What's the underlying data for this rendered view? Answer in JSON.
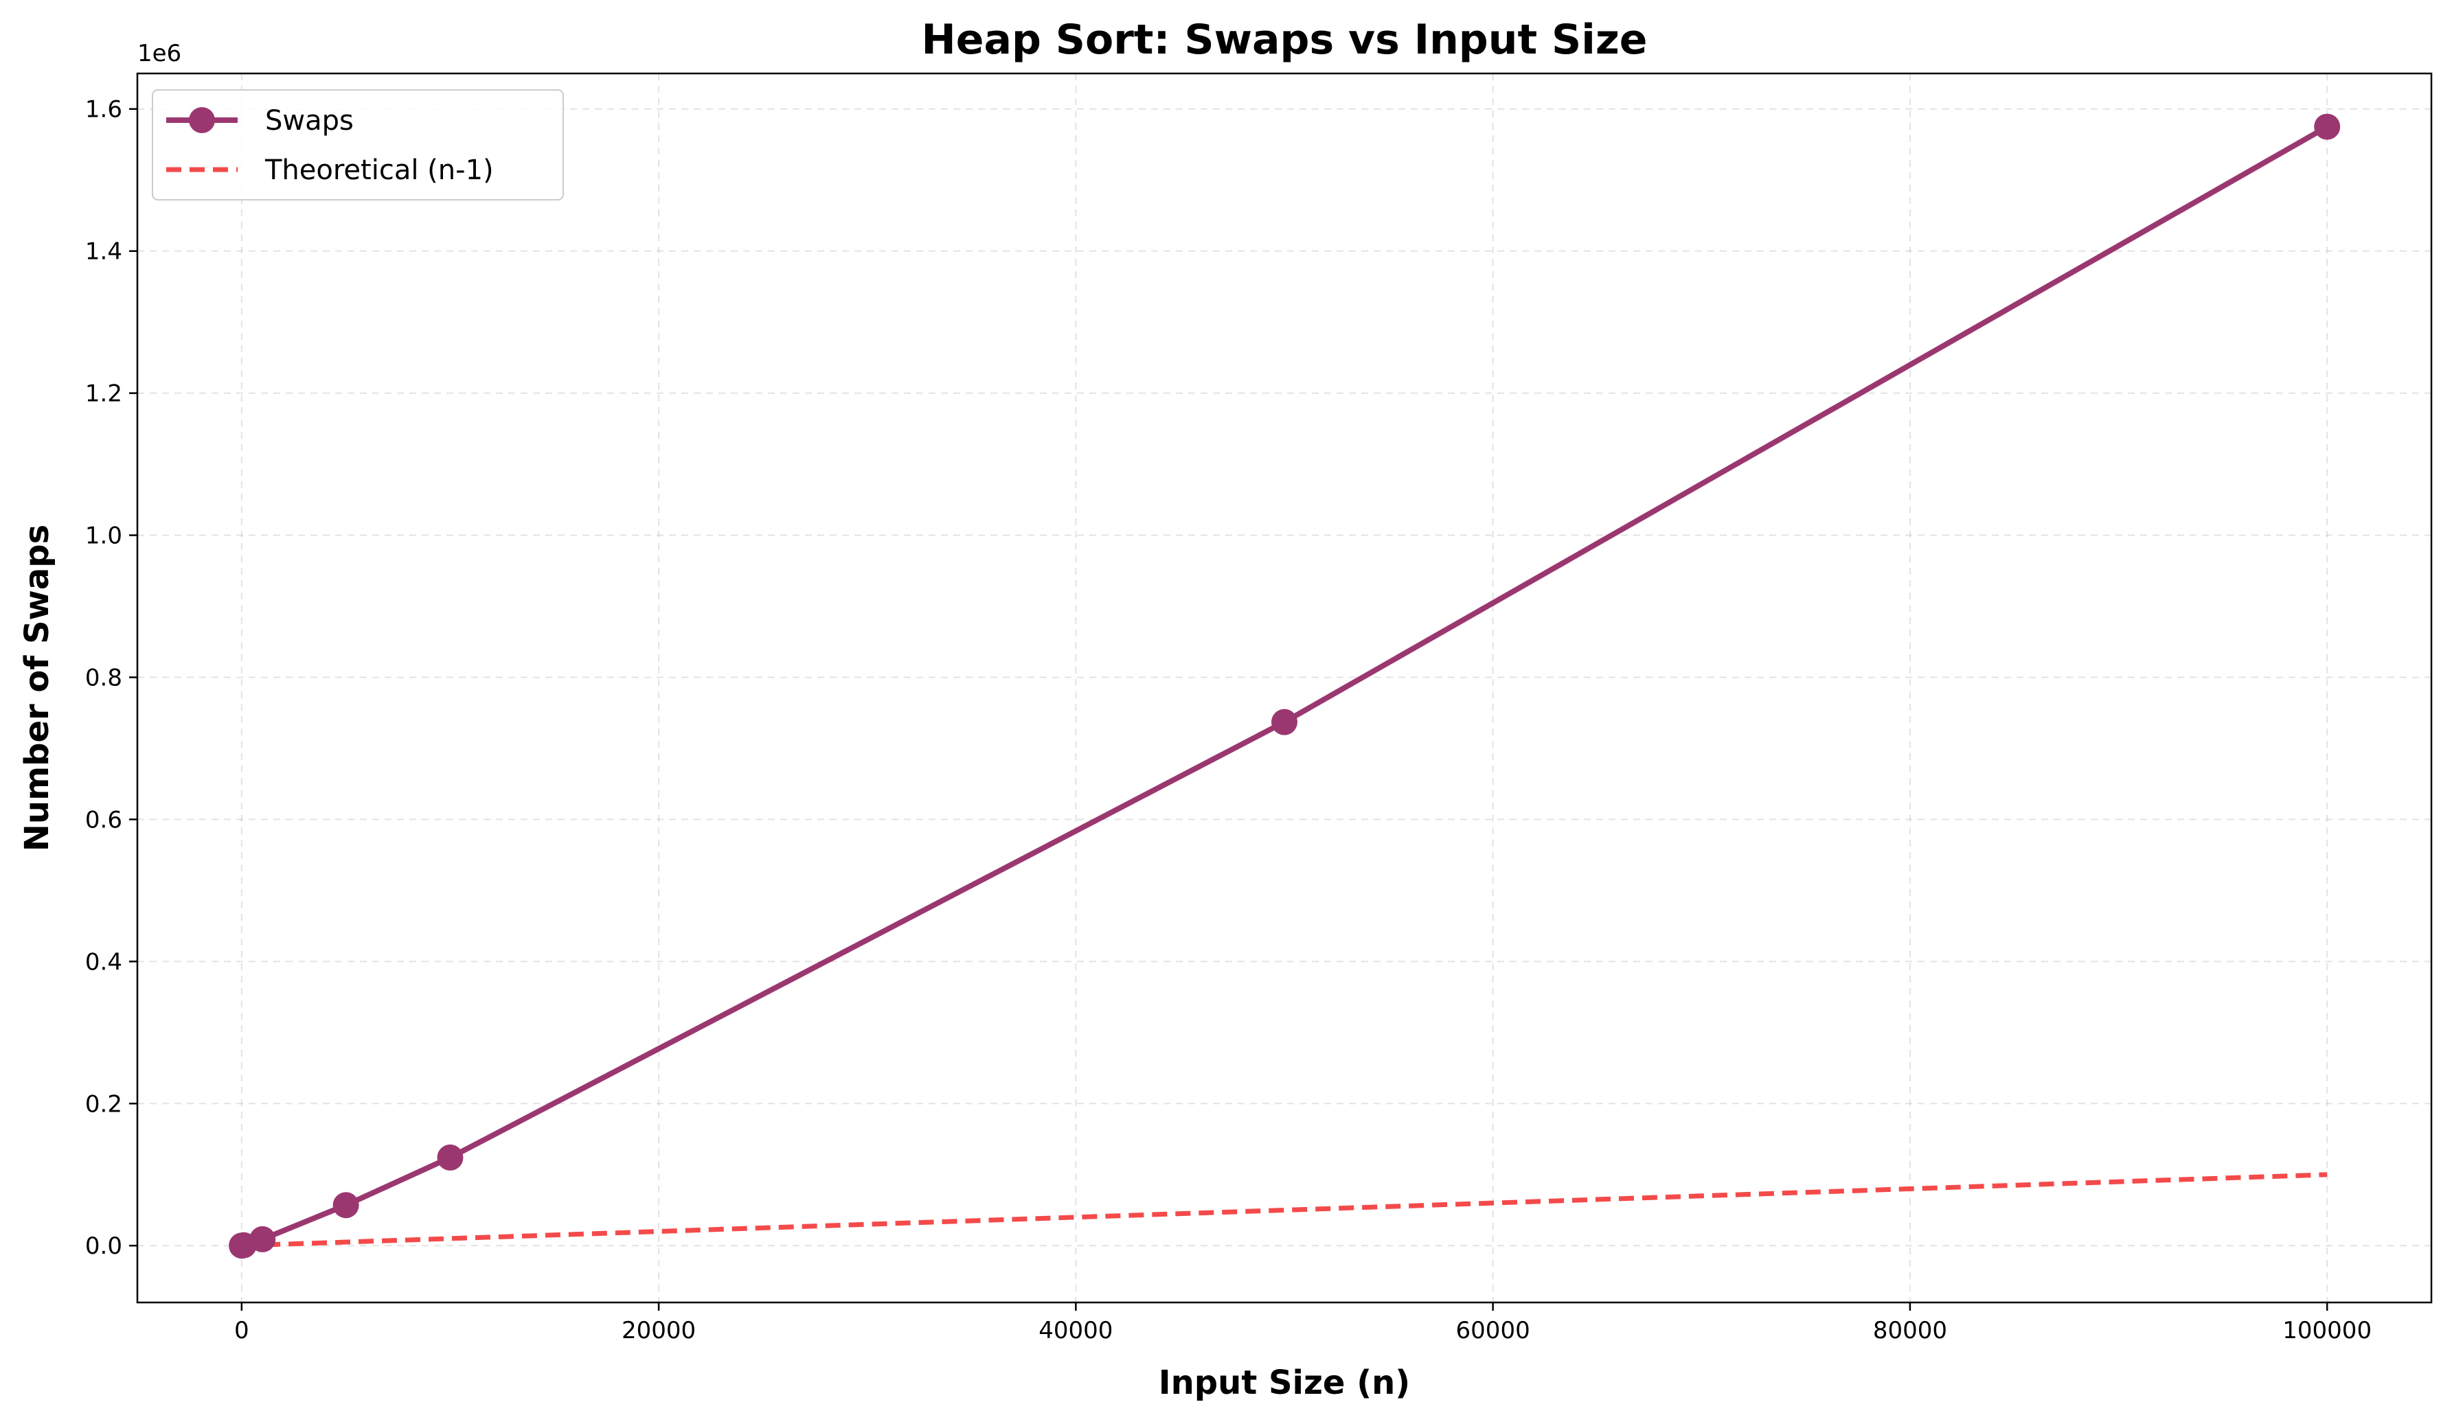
{
  "chart_data": {
    "type": "line",
    "title": "Heap Sort: Swaps vs Input Size",
    "xlabel": "Input Size (n)",
    "ylabel": "Number of Swaps",
    "y_offset_label": "1e6",
    "xlim": [
      -5000,
      105000
    ],
    "ylim": [
      -0.08,
      1.65
    ],
    "y_scale_factor": 1000000,
    "x_ticks": [
      0,
      20000,
      40000,
      60000,
      80000,
      100000
    ],
    "x_tick_labels": [
      "0",
      "20000",
      "40000",
      "60000",
      "80000",
      "100000"
    ],
    "y_ticks": [
      0.0,
      0.2,
      0.4,
      0.6,
      0.8,
      1.0,
      1.2,
      1.4,
      1.6
    ],
    "y_tick_labels": [
      "0.0",
      "0.2",
      "0.4",
      "0.6",
      "0.8",
      "1.0",
      "1.2",
      "1.4",
      "1.6"
    ],
    "grid": true,
    "legend_position": "top-left",
    "series": [
      {
        "name": "Swaps",
        "style": "solid-with-markers",
        "color": "#9b3770",
        "x": [
          10,
          100,
          1000,
          5000,
          10000,
          50000,
          100000
        ],
        "y": [
          20,
          580,
          9000,
          57000,
          124000,
          737000,
          1575000
        ]
      },
      {
        "name": "Theoretical (n-1)",
        "style": "dashed",
        "color": "#f44a4a",
        "x": [
          10,
          100,
          1000,
          5000,
          10000,
          50000,
          100000
        ],
        "y": [
          9,
          99,
          999,
          4999,
          9999,
          49999,
          99999
        ]
      }
    ]
  }
}
